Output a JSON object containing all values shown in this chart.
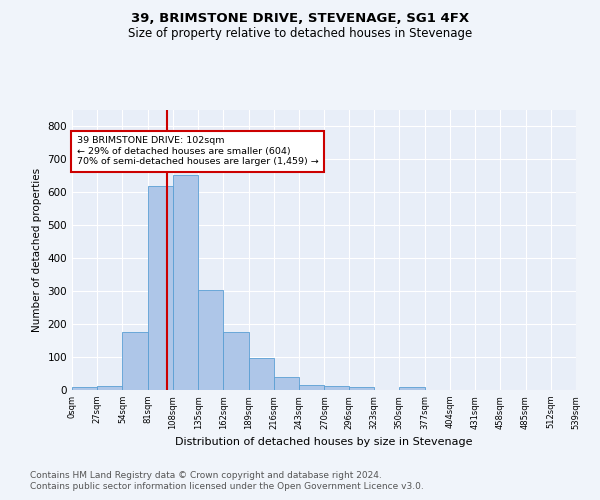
{
  "title": "39, BRIMSTONE DRIVE, STEVENAGE, SG1 4FX",
  "subtitle": "Size of property relative to detached houses in Stevenage",
  "xlabel": "Distribution of detached houses by size in Stevenage",
  "ylabel": "Number of detached properties",
  "bar_edges": [
    0,
    27,
    54,
    81,
    108,
    135,
    162,
    189,
    216,
    243,
    270,
    296,
    323,
    350,
    377,
    404,
    431,
    458,
    485,
    512,
    539
  ],
  "bar_heights": [
    8,
    13,
    175,
    619,
    652,
    305,
    175,
    98,
    40,
    15,
    12,
    10,
    0,
    8,
    0,
    0,
    0,
    0,
    0,
    0
  ],
  "bar_color": "#aec6e8",
  "bar_edge_color": "#5a9fd4",
  "property_line_x": 102,
  "property_line_color": "#cc0000",
  "annotation_text": "39 BRIMSTONE DRIVE: 102sqm\n← 29% of detached houses are smaller (604)\n70% of semi-detached houses are larger (1,459) →",
  "annotation_box_color": "#cc0000",
  "annotation_bg": "#ffffff",
  "ylim": [
    0,
    850
  ],
  "yticks": [
    0,
    100,
    200,
    300,
    400,
    500,
    600,
    700,
    800
  ],
  "xtick_labels": [
    "0sqm",
    "27sqm",
    "54sqm",
    "81sqm",
    "108sqm",
    "135sqm",
    "162sqm",
    "189sqm",
    "216sqm",
    "243sqm",
    "270sqm",
    "296sqm",
    "323sqm",
    "350sqm",
    "377sqm",
    "404sqm",
    "431sqm",
    "458sqm",
    "485sqm",
    "512sqm",
    "539sqm"
  ],
  "footer_line1": "Contains HM Land Registry data © Crown copyright and database right 2024.",
  "footer_line2": "Contains public sector information licensed under the Open Government Licence v3.0.",
  "bg_color": "#f0f4fa",
  "plot_bg_color": "#e8eef8",
  "grid_color": "#ffffff",
  "title_fontsize": 9.5,
  "subtitle_fontsize": 8.5,
  "footer_fontsize": 6.5
}
